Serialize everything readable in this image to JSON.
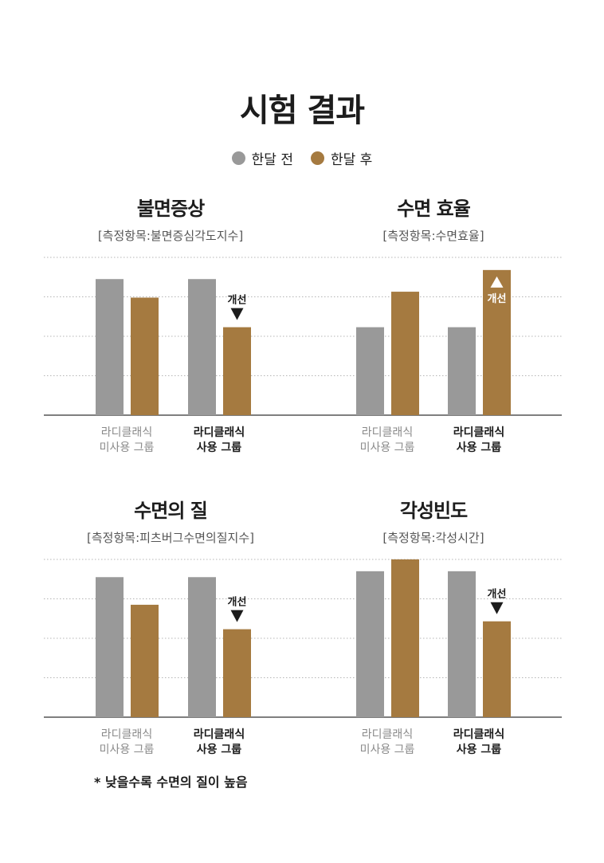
{
  "title": "시험 결과",
  "legend": {
    "before": {
      "label": "한달 전",
      "color": "#999999"
    },
    "after": {
      "label": "한달 후",
      "color": "#a57a40"
    }
  },
  "colors": {
    "before": "#999999",
    "after": "#a57a40",
    "axis": "#555555",
    "grid": "#b4b4b4"
  },
  "footnote": "* 낮을수록 수면의 질이 높음",
  "panels": [
    {
      "title": "불면증상",
      "subtitle": "[측정항목:불면증심각도지수]"
    },
    {
      "title": "수면 효율",
      "subtitle": "[측정항목:수면효율]"
    },
    {
      "title": "수면의 질",
      "subtitle": "[측정항목:피츠버그수면의질지수]"
    },
    {
      "title": "각성빈도",
      "subtitle": "[측정항목:각성시간]"
    }
  ],
  "chart_data": [
    {
      "type": "bar",
      "title": "불면증상",
      "subtitle": "[측정항목:불면증심각도지수]",
      "categories": [
        [
          "라디클래식",
          "미사용 그룹"
        ],
        [
          "라디클래식",
          "사용 그룹"
        ]
      ],
      "series": [
        {
          "name": "한달 전",
          "values": [
            3.45,
            3.45
          ]
        },
        {
          "name": "한달 후",
          "values": [
            2.98,
            2.23
          ]
        }
      ],
      "ylim": [
        0,
        4
      ],
      "grid": true,
      "ylabel": "",
      "xlabel": "",
      "annotations": [
        {
          "category_index": 1,
          "series_index": 1,
          "label": "개선",
          "direction": "down"
        }
      ]
    },
    {
      "type": "bar",
      "title": "수면 효율",
      "subtitle": "[측정항목:수면효율]",
      "categories": [
        [
          "라디클래식",
          "미사용 그룹"
        ],
        [
          "라디클래식",
          "사용 그룹"
        ]
      ],
      "series": [
        {
          "name": "한달 전",
          "values": [
            2.23,
            2.23
          ]
        },
        {
          "name": "한달 후",
          "values": [
            3.13,
            3.68
          ]
        }
      ],
      "ylim": [
        0,
        4
      ],
      "grid": true,
      "ylabel": "",
      "xlabel": "",
      "annotations": [
        {
          "category_index": 1,
          "series_index": 1,
          "label": "개선",
          "direction": "up"
        }
      ]
    },
    {
      "type": "bar",
      "title": "수면의 질",
      "subtitle": "[측정항목:피츠버그수면의질지수]",
      "categories": [
        [
          "라디클래식",
          "미사용 그룹"
        ],
        [
          "라디클래식",
          "사용 그룹"
        ]
      ],
      "series": [
        {
          "name": "한달 전",
          "values": [
            3.55,
            3.55
          ]
        },
        {
          "name": "한달 후",
          "values": [
            2.85,
            2.23
          ]
        }
      ],
      "ylim": [
        0,
        4
      ],
      "grid": true,
      "ylabel": "",
      "xlabel": "",
      "annotations": [
        {
          "category_index": 1,
          "series_index": 1,
          "label": "개선",
          "direction": "down"
        }
      ]
    },
    {
      "type": "bar",
      "title": "각성빈도",
      "subtitle": "[측정항목:각성시간]",
      "categories": [
        [
          "라디클래식",
          "미사용 그룹"
        ],
        [
          "라디클래식",
          "사용 그룹"
        ]
      ],
      "series": [
        {
          "name": "한달 전",
          "values": [
            3.7,
            3.7
          ]
        },
        {
          "name": "한달 후",
          "values": [
            4.0,
            2.43
          ]
        }
      ],
      "ylim": [
        0,
        4
      ],
      "grid": true,
      "ylabel": "",
      "xlabel": "",
      "annotations": [
        {
          "category_index": 1,
          "series_index": 1,
          "label": "개선",
          "direction": "down"
        }
      ]
    }
  ]
}
